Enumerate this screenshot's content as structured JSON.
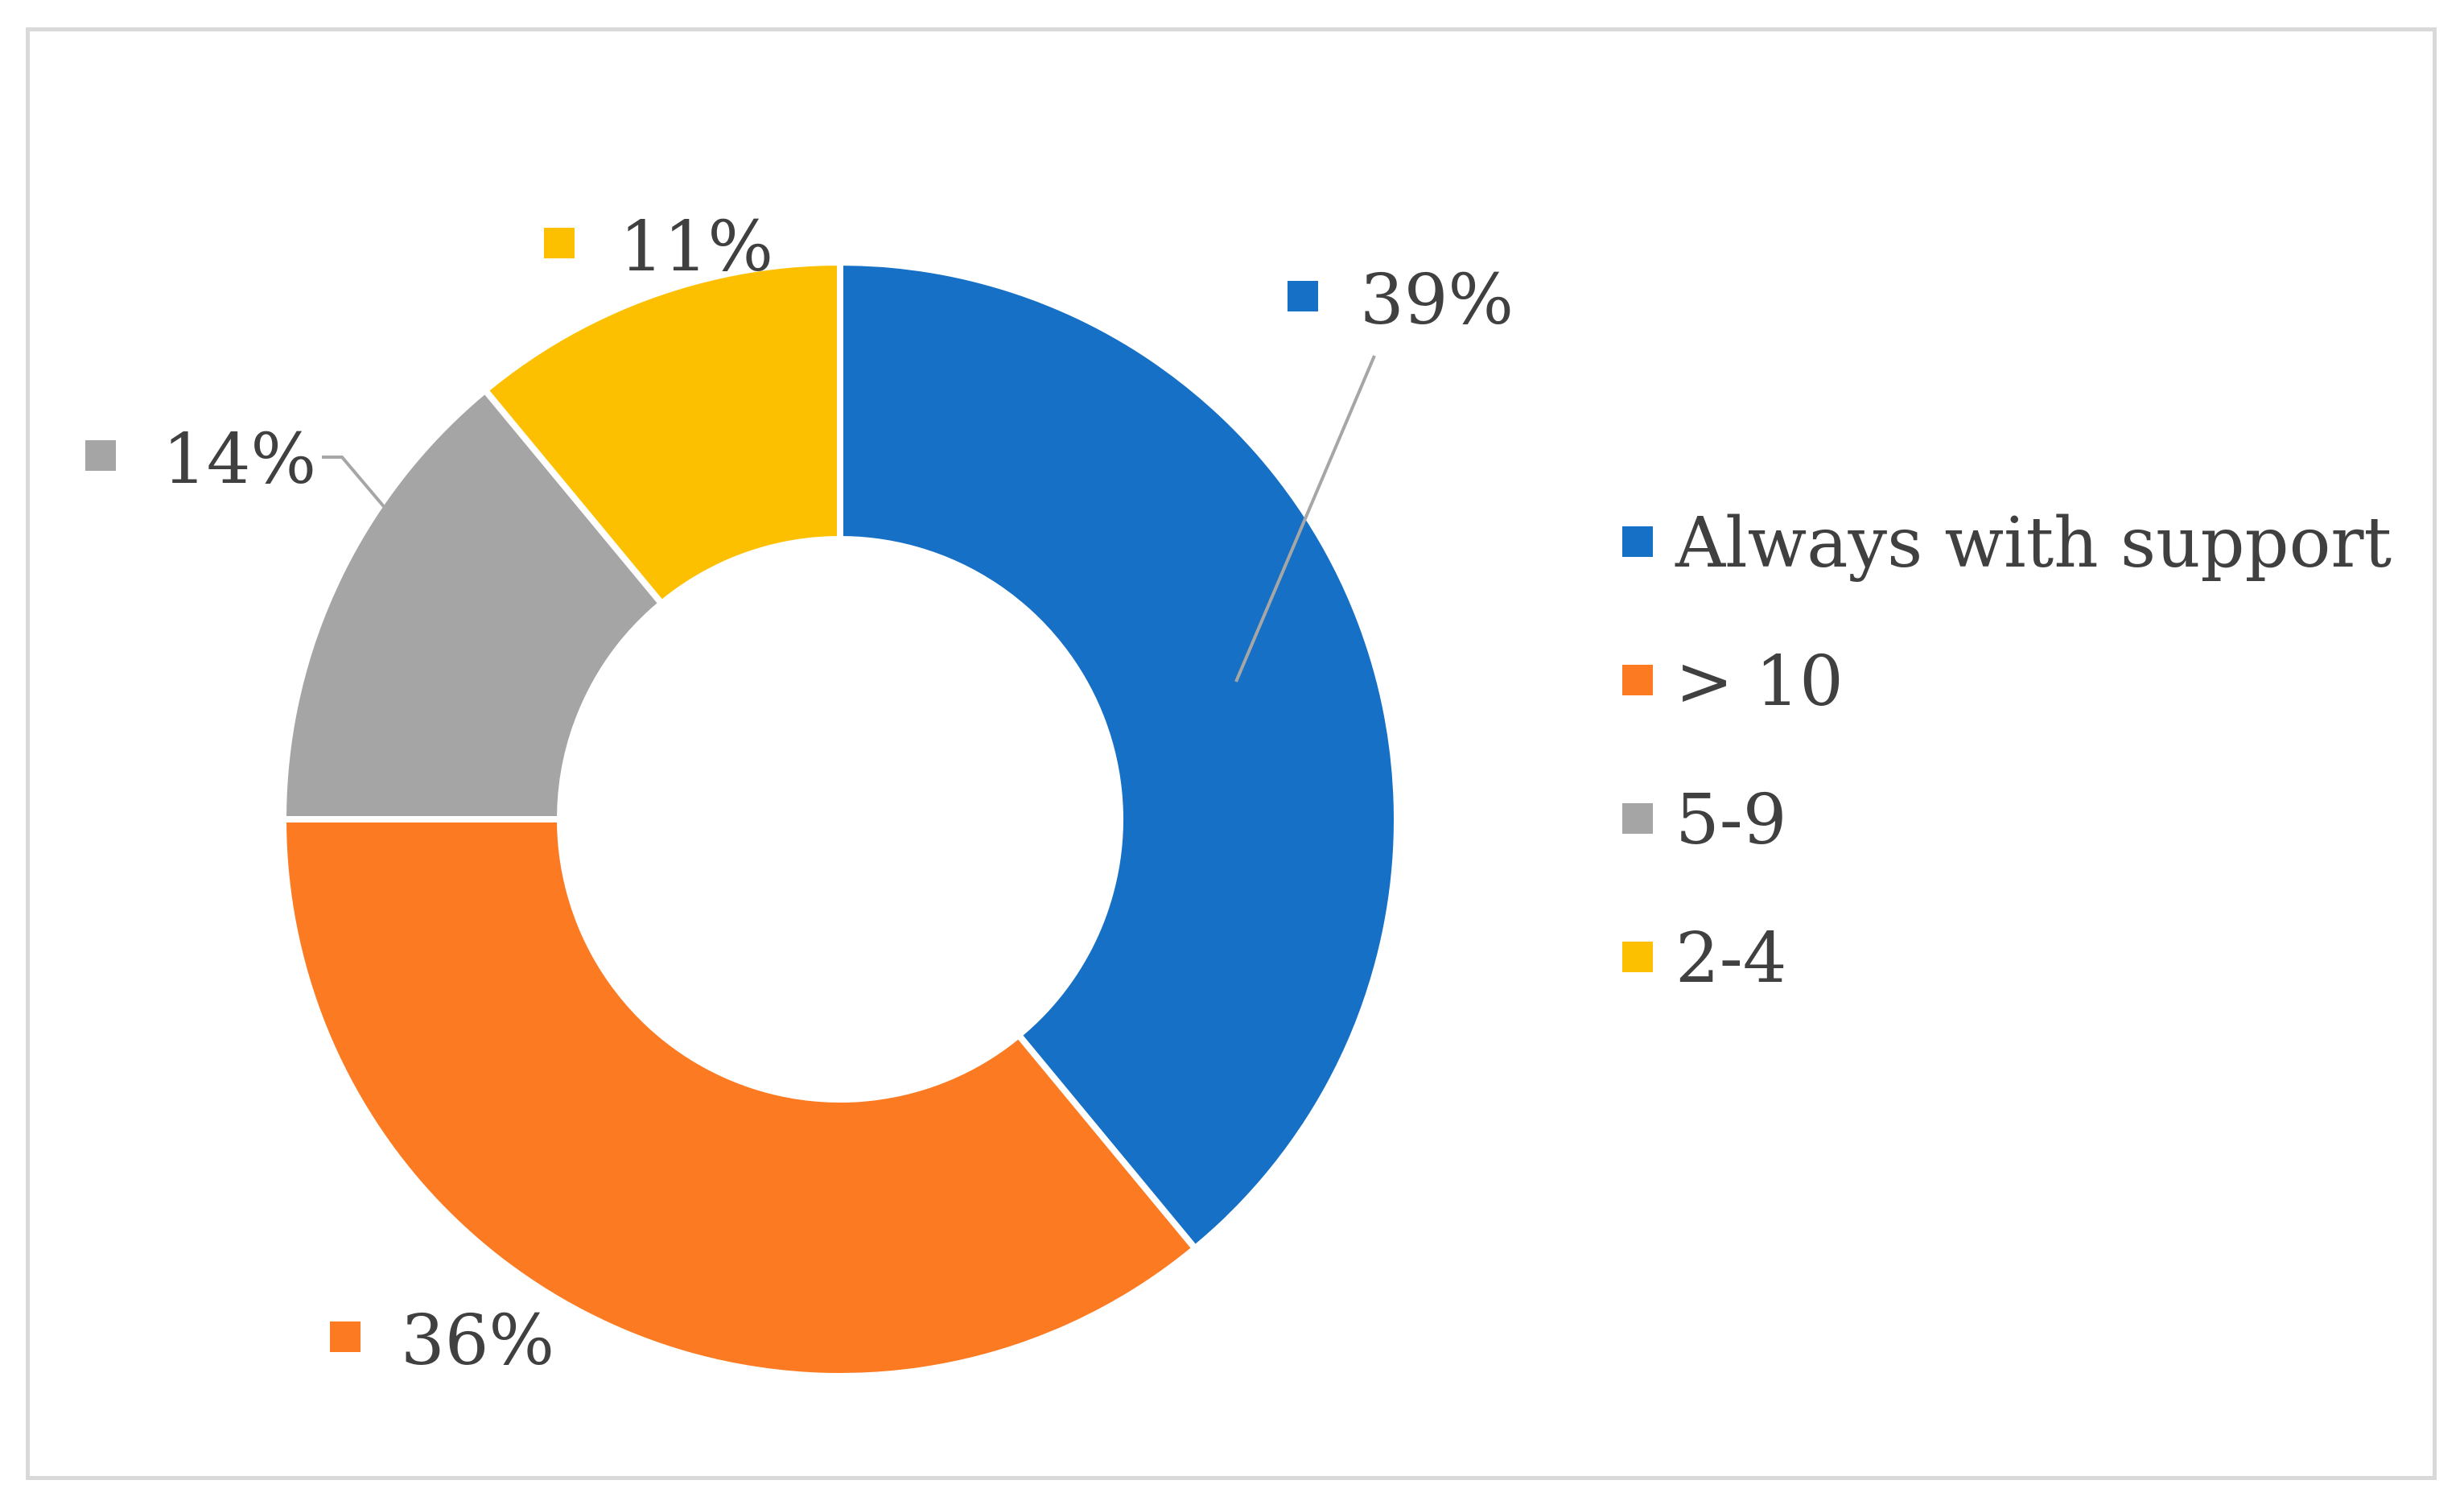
{
  "chart_data": {
    "type": "pie",
    "subtype": "donut",
    "title": "",
    "categories": [
      "Always with support",
      "> 10",
      "5-9",
      "2-4"
    ],
    "values": [
      39,
      36,
      14,
      11
    ],
    "unit": "%",
    "data_labels": [
      "39%",
      "36%",
      "14%",
      "11%"
    ],
    "colors": [
      "#1570c6",
      "#fc7b22",
      "#a5a5a5",
      "#fdc000"
    ],
    "legend": {
      "position": "right",
      "entries": [
        "Always with support",
        "> 10",
        "5-9",
        "2-4"
      ]
    }
  }
}
